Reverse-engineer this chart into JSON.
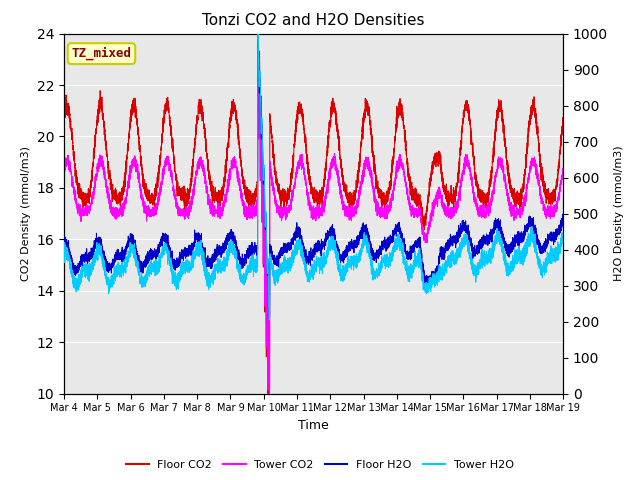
{
  "title": "Tonzi CO2 and H2O Densities",
  "xlabel": "Time",
  "ylabel_left": "CO2 Density (mmol/m3)",
  "ylabel_right": "H2O Density (mmol/m3)",
  "ylim_left": [
    10,
    24
  ],
  "ylim_right": [
    0,
    1000
  ],
  "yticks_left": [
    10,
    12,
    14,
    16,
    18,
    20,
    22,
    24
  ],
  "yticks_right": [
    0,
    100,
    200,
    300,
    400,
    500,
    600,
    700,
    800,
    900,
    1000
  ],
  "xtick_labels": [
    "Mar 4",
    "Mar 5",
    "Mar 6",
    "Mar 7",
    "Mar 8",
    "Mar 9",
    "Mar 10",
    "Mar 11",
    "Mar 12",
    "Mar 13",
    "Mar 14",
    "Mar 15",
    "Mar 16",
    "Mar 17",
    "Mar 18",
    "Mar 19"
  ],
  "annotation_text": "TZ_mixed",
  "annotation_color": "#8B0000",
  "annotation_bg": "#ffffcc",
  "annotation_edge": "#cccc00",
  "floor_co2_color": "#dd0000",
  "tower_co2_color": "#ff00ff",
  "floor_h2o_color": "#0000cc",
  "tower_h2o_color": "#00ccff",
  "plot_bg_color": "#e8e8e8",
  "fig_bg_color": "#ffffff",
  "grid_color": "#ffffff",
  "legend_labels": [
    "Floor CO2",
    "Tower CO2",
    "Floor H2O",
    "Tower H2O"
  ],
  "n_points": 5400,
  "total_days": 15
}
